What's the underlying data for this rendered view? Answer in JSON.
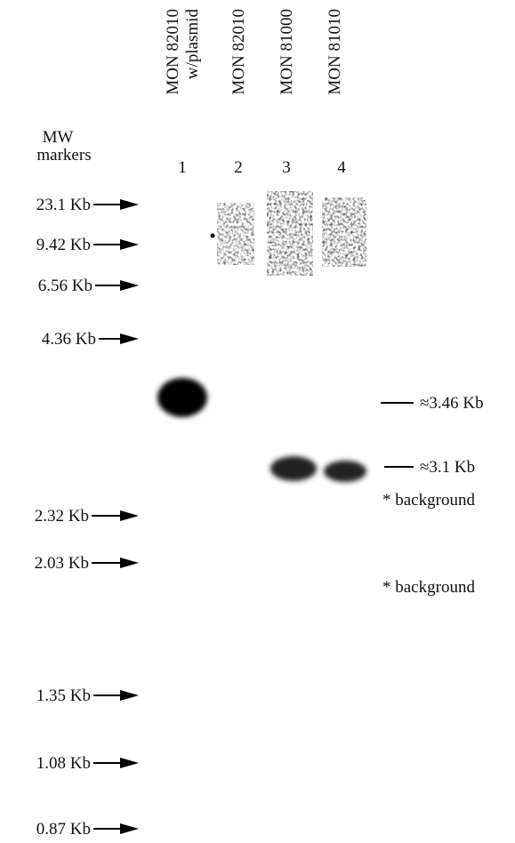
{
  "lanes": [
    {
      "label": [
        "MON 82010",
        "w/plasmid"
      ],
      "number": "1"
    },
    {
      "label": [
        "MON 82010"
      ],
      "number": "2"
    },
    {
      "label": [
        "MON 81000"
      ],
      "number": "3"
    },
    {
      "label": [
        "MON 81010"
      ],
      "number": "4"
    }
  ],
  "marker_title": [
    "MW",
    "markers"
  ],
  "markers": [
    "23.1 Kb",
    "9.42 Kb",
    "6.56 Kb",
    "4.36 Kb",
    "2.32 Kb",
    "2.03 Kb",
    "1.35 Kb",
    "1.08 Kb",
    "0.87 Kb"
  ],
  "annotations": [
    "≈3.46 Kb",
    "≈3.1 Kb",
    "* background",
    "* background"
  ]
}
